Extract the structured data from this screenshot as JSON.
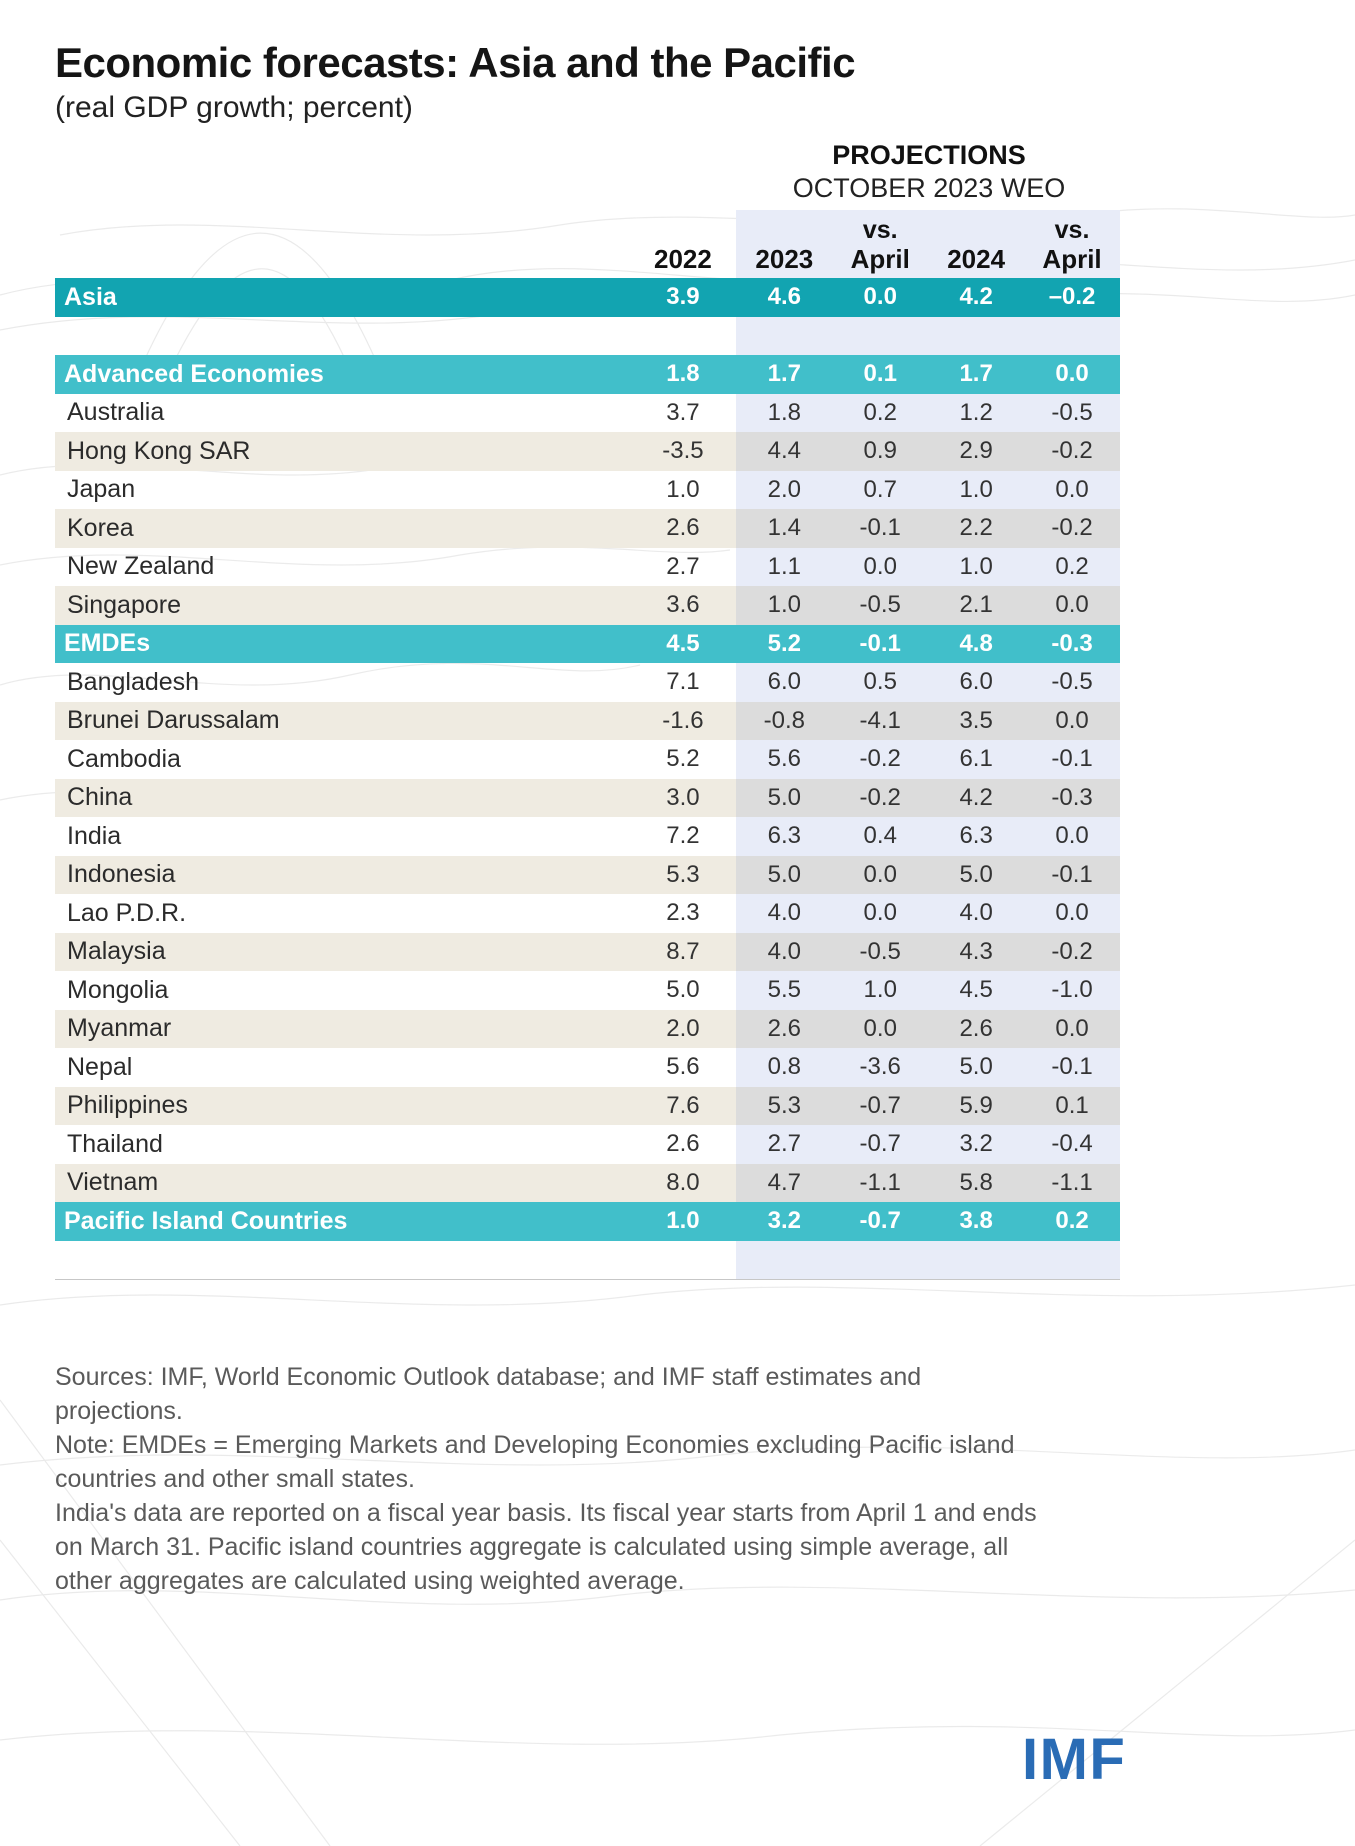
{
  "chart_data": {
    "type": "table",
    "title": "Economic forecasts: Asia and the Pacific",
    "subtitle": "(real GDP growth; percent)",
    "projections": {
      "label": "PROJECTIONS",
      "sublabel": "OCTOBER 2023 WEO"
    },
    "columns": [
      {
        "key": "2022",
        "top": "",
        "label": "2022",
        "proj": false
      },
      {
        "key": "2023",
        "top": "",
        "label": "2023",
        "proj": true
      },
      {
        "key": "vs-april-2023",
        "top": "vs.",
        "label": "April",
        "proj": true
      },
      {
        "key": "2024",
        "top": "",
        "label": "2024",
        "proj": true
      },
      {
        "key": "vs-april-2024",
        "top": "vs.",
        "label": "April",
        "proj": true
      }
    ],
    "rows": [
      {
        "label": "Asia",
        "style": "section-dark",
        "values": [
          "3.9",
          "4.6",
          "0.0",
          "4.2",
          "–0.2"
        ]
      },
      {
        "label": "",
        "style": "spacer",
        "values": []
      },
      {
        "label": "Advanced Economies",
        "style": "section",
        "values": [
          "1.8",
          "1.7",
          "0.1",
          "1.7",
          "0.0"
        ]
      },
      {
        "label": "Australia",
        "style": "white",
        "values": [
          "3.7",
          "1.8",
          "0.2",
          "1.2",
          "-0.5"
        ]
      },
      {
        "label": "Hong Kong SAR",
        "style": "cream",
        "values": [
          "-3.5",
          "4.4",
          "0.9",
          "2.9",
          "-0.2"
        ]
      },
      {
        "label": "Japan",
        "style": "white",
        "values": [
          "1.0",
          "2.0",
          "0.7",
          "1.0",
          "0.0"
        ]
      },
      {
        "label": "Korea",
        "style": "cream",
        "values": [
          "2.6",
          "1.4",
          "-0.1",
          "2.2",
          "-0.2"
        ]
      },
      {
        "label": "New Zealand",
        "style": "white",
        "values": [
          "2.7",
          "1.1",
          "0.0",
          "1.0",
          "0.2"
        ]
      },
      {
        "label": "Singapore",
        "style": "cream",
        "values": [
          "3.6",
          "1.0",
          "-0.5",
          "2.1",
          "0.0"
        ]
      },
      {
        "label": "EMDEs",
        "style": "section",
        "values": [
          "4.5",
          "5.2",
          "-0.1",
          "4.8",
          "-0.3"
        ]
      },
      {
        "label": "Bangladesh",
        "style": "white",
        "values": [
          "7.1",
          "6.0",
          "0.5",
          "6.0",
          "-0.5"
        ]
      },
      {
        "label": "Brunei Darussalam",
        "style": "cream",
        "values": [
          "-1.6",
          "-0.8",
          "-4.1",
          "3.5",
          "0.0"
        ]
      },
      {
        "label": "Cambodia",
        "style": "white",
        "values": [
          "5.2",
          "5.6",
          "-0.2",
          "6.1",
          "-0.1"
        ]
      },
      {
        "label": "China",
        "style": "cream",
        "values": [
          "3.0",
          "5.0",
          "-0.2",
          "4.2",
          "-0.3"
        ]
      },
      {
        "label": "India",
        "style": "white",
        "values": [
          "7.2",
          "6.3",
          "0.4",
          "6.3",
          "0.0"
        ]
      },
      {
        "label": "Indonesia",
        "style": "cream",
        "values": [
          "5.3",
          "5.0",
          "0.0",
          "5.0",
          "-0.1"
        ]
      },
      {
        "label": "Lao P.D.R.",
        "style": "white",
        "values": [
          "2.3",
          "4.0",
          "0.0",
          "4.0",
          "0.0"
        ]
      },
      {
        "label": "Malaysia",
        "style": "cream",
        "values": [
          "8.7",
          "4.0",
          "-0.5",
          "4.3",
          "-0.2"
        ]
      },
      {
        "label": "Mongolia",
        "style": "white",
        "values": [
          "5.0",
          "5.5",
          "1.0",
          "4.5",
          "-1.0"
        ]
      },
      {
        "label": "Myanmar",
        "style": "cream",
        "values": [
          "2.0",
          "2.6",
          "0.0",
          "2.6",
          "0.0"
        ]
      },
      {
        "label": "Nepal",
        "style": "white",
        "values": [
          "5.6",
          "0.8",
          "-3.6",
          "5.0",
          "-0.1"
        ]
      },
      {
        "label": "Philippines",
        "style": "cream",
        "values": [
          "7.6",
          "5.3",
          "-0.7",
          "5.9",
          "0.1"
        ]
      },
      {
        "label": "Thailand",
        "style": "white",
        "values": [
          "2.6",
          "2.7",
          "-0.7",
          "3.2",
          "-0.4"
        ]
      },
      {
        "label": "Vietnam",
        "style": "cream",
        "values": [
          "8.0",
          "4.7",
          "-1.1",
          "5.8",
          "-1.1"
        ]
      },
      {
        "label": "Pacific Island Countries",
        "style": "section",
        "values": [
          "1.0",
          "3.2",
          "-0.7",
          "3.8",
          "0.2"
        ]
      },
      {
        "label": "",
        "style": "spacer",
        "values": []
      }
    ]
  },
  "footer": {
    "notes": [
      "Sources: IMF, World Economic Outlook database; and IMF staff estimates and projections.",
      "Note: EMDEs = Emerging Markets and Developing Economies excluding Pacific island countries and other small states.",
      "India's data are reported on a fiscal year basis. Its fiscal year starts from April 1 and ends on March 31. Pacific island countries aggregate is calculated using simple average, all other aggregates are calculated using weighted average."
    ],
    "logo": "IMF"
  },
  "colors": {
    "teal-dark": "#12a4b1",
    "teal": "#41bfca",
    "cream": "#efebe1",
    "proj-blue": "#e8ecf8",
    "proj-gray": "#dcdcdc",
    "imf-blue": "#2a6cb5",
    "note-gray": "#5a5a5a"
  }
}
